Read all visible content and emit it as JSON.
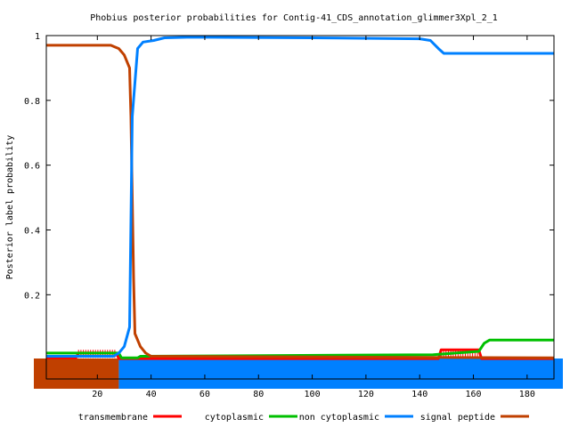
{
  "chart_data": {
    "type": "line",
    "title": "Phobius posterior probabilities for Contig-41_CDS_annotation_glimmer3Xpl_2_1",
    "xlabel": "",
    "ylabel": "Posterior label probability",
    "xlim": [
      1,
      190
    ],
    "ylim": [
      -0.06,
      1.0
    ],
    "x_ticks": [
      20,
      40,
      60,
      80,
      100,
      120,
      140,
      160,
      180
    ],
    "y_ticks": [
      0.2,
      0.4,
      0.6,
      0.8,
      1
    ],
    "x_tick_labels": [
      "20",
      "40",
      "60",
      "80",
      "100",
      "120",
      "140",
      "160",
      "180"
    ],
    "y_tick_labels": [
      "0.2",
      "0.4",
      "0.6",
      "0.8",
      "1"
    ],
    "grid": false,
    "legend_position": "bottom",
    "series": [
      {
        "name": "transmembrane",
        "color": "#ff0000",
        "points": [
          [
            1,
            0.005
          ],
          [
            12,
            0.005
          ],
          [
            13,
            0.02
          ],
          [
            27,
            0.02
          ],
          [
            28,
            0.003
          ],
          [
            147,
            0.003
          ],
          [
            148,
            0.03
          ],
          [
            162,
            0.03
          ],
          [
            163,
            0.003
          ],
          [
            190,
            0.003
          ]
        ]
      },
      {
        "name": "cytoplasmic",
        "color": "#00c000",
        "points": [
          [
            1,
            0.02
          ],
          [
            28,
            0.02
          ],
          [
            29,
            0.005
          ],
          [
            35,
            0.005
          ],
          [
            36,
            0.01
          ],
          [
            145,
            0.015
          ],
          [
            162,
            0.025
          ],
          [
            164,
            0.05
          ],
          [
            166,
            0.06
          ],
          [
            190,
            0.06
          ]
        ]
      },
      {
        "name": "non cytoplasmic",
        "color": "#0080ff",
        "points": [
          [
            1,
            0.01
          ],
          [
            26,
            0.01
          ],
          [
            28,
            0.02
          ],
          [
            30,
            0.04
          ],
          [
            32,
            0.1
          ],
          [
            33,
            0.75
          ],
          [
            35,
            0.96
          ],
          [
            37,
            0.98
          ],
          [
            41,
            0.985
          ],
          [
            45,
            0.993
          ],
          [
            55,
            0.995
          ],
          [
            100,
            0.993
          ],
          [
            140,
            0.99
          ],
          [
            144,
            0.985
          ],
          [
            147,
            0.96
          ],
          [
            149,
            0.945
          ],
          [
            160,
            0.945
          ],
          [
            190,
            0.945
          ]
        ]
      },
      {
        "name": "signal peptide",
        "color": "#c04000",
        "points": [
          [
            1,
            0.97
          ],
          [
            25,
            0.97
          ],
          [
            28,
            0.96
          ],
          [
            30,
            0.94
          ],
          [
            32,
            0.9
          ],
          [
            32.5,
            0.75
          ],
          [
            33,
            0.5
          ],
          [
            33.5,
            0.25
          ],
          [
            34,
            0.08
          ],
          [
            36,
            0.04
          ],
          [
            38,
            0.02
          ],
          [
            40,
            0.01
          ],
          [
            190,
            0.005
          ]
        ]
      }
    ],
    "bottom_bands": {
      "cytoplasmic_band": {
        "series": "signal peptide",
        "x_range": [
          1,
          28
        ]
      },
      "outside_band": {
        "series": "non cytoplasmic",
        "x_range": [
          28,
          190
        ]
      }
    }
  }
}
